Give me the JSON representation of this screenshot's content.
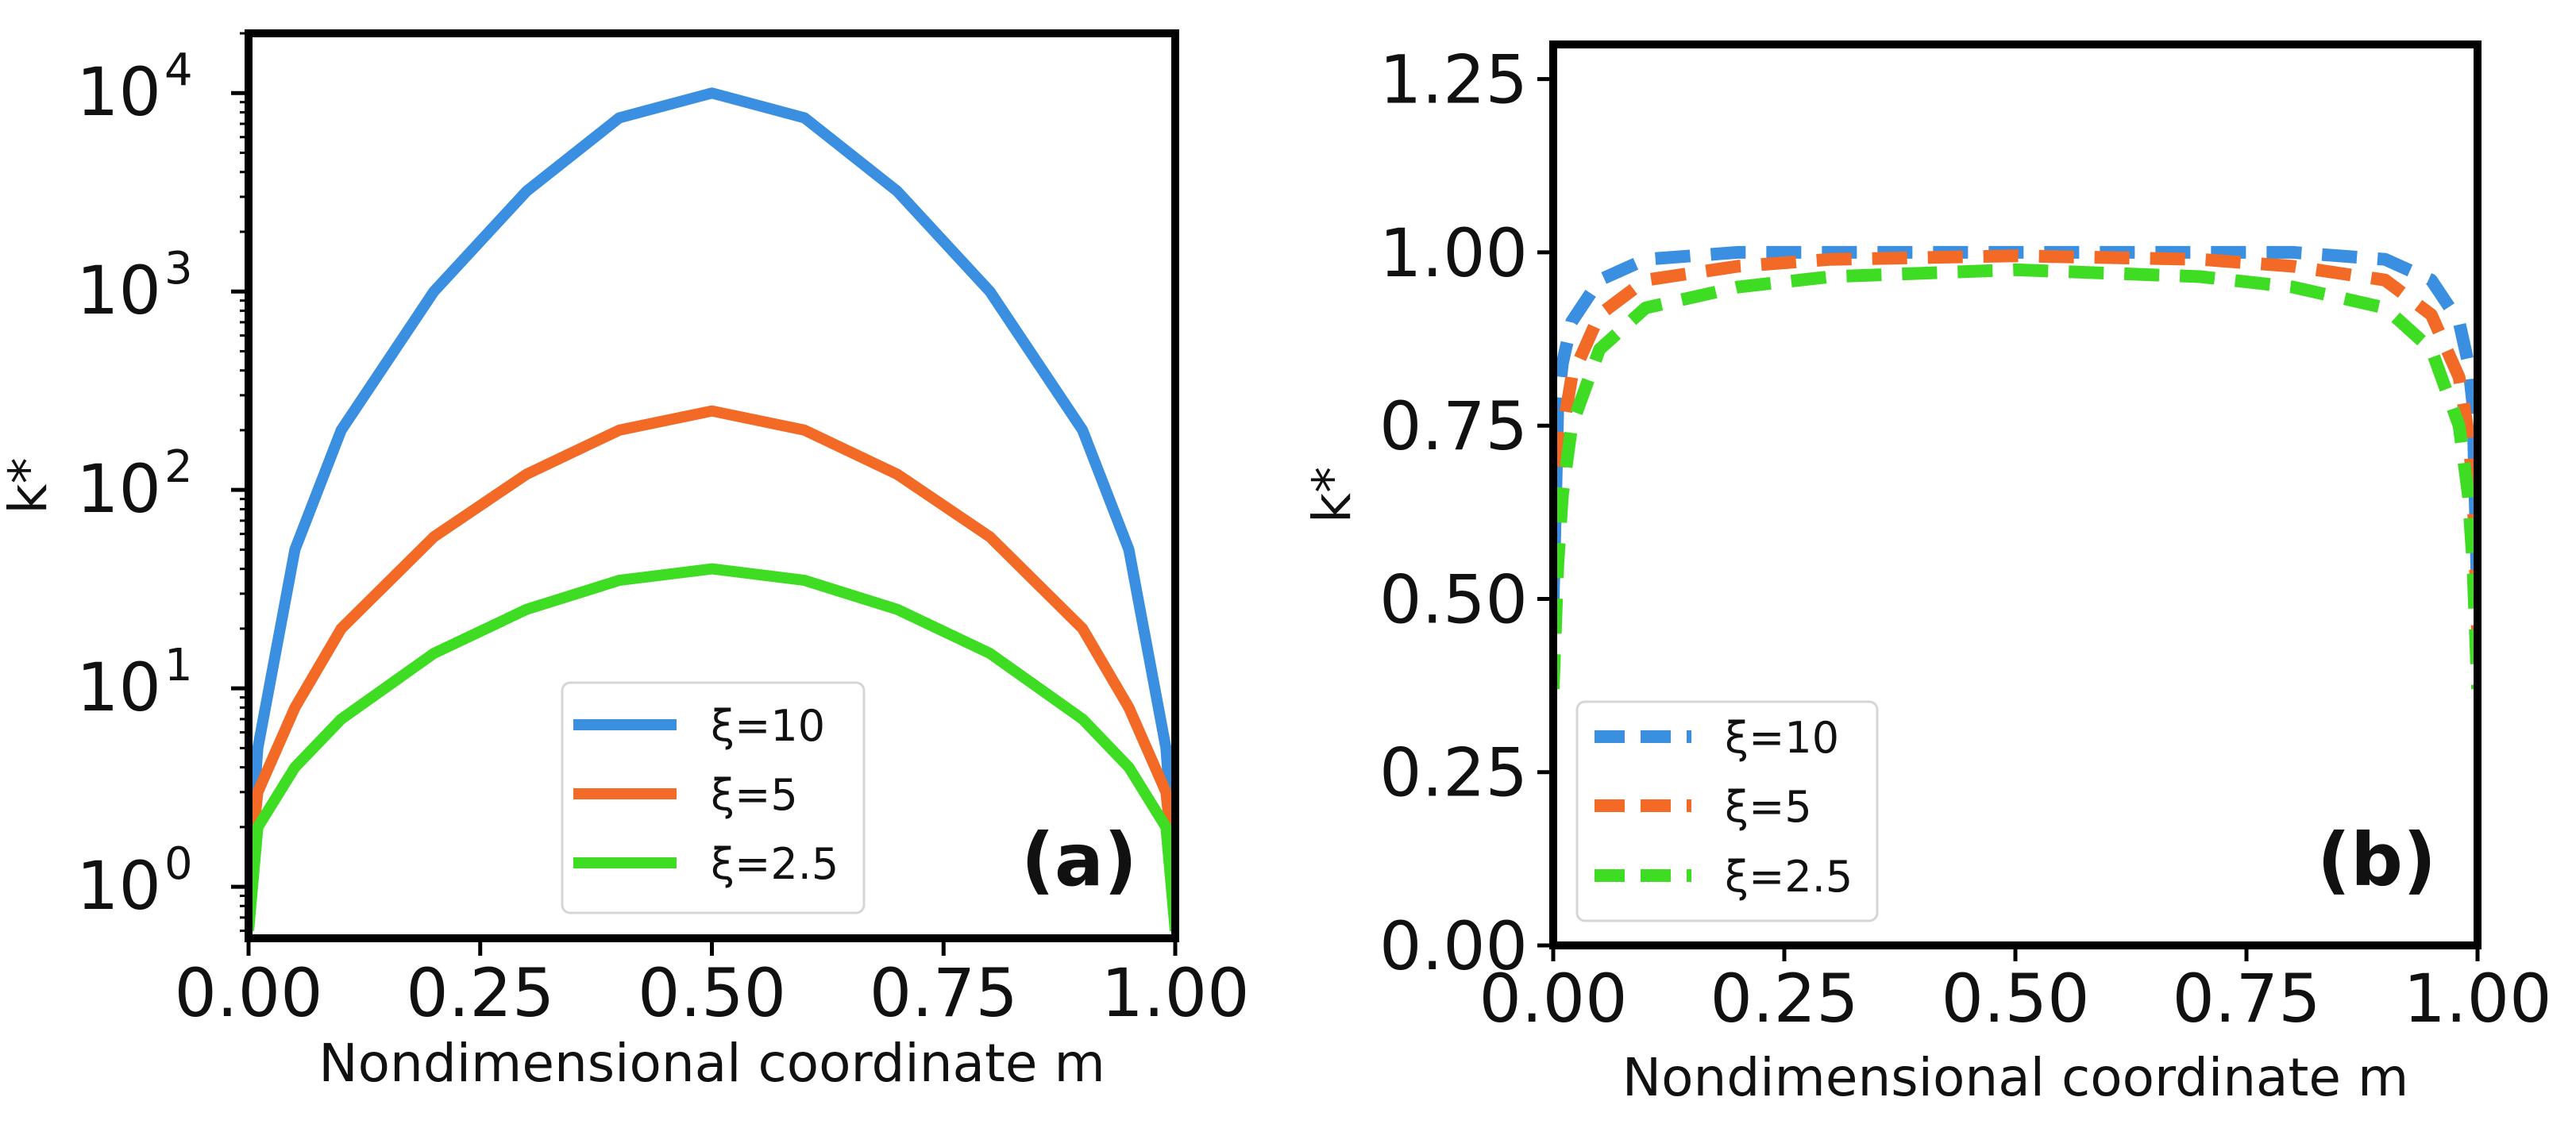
{
  "chart_data": [
    {
      "panel_label": "(a)",
      "type": "line",
      "yscale": "log",
      "xlabel": "Nondimensional coordinate m",
      "ylabel": "k*",
      "xlim": [
        0,
        1
      ],
      "ylim": [
        0.55,
        20000
      ],
      "xticks": [
        "0.00",
        "0.25",
        "0.50",
        "0.75",
        "1.00"
      ],
      "yticks": [
        {
          "base": "10",
          "exp": "0",
          "value": 1
        },
        {
          "base": "10",
          "exp": "1",
          "value": 10
        },
        {
          "base": "10",
          "exp": "2",
          "value": 100
        },
        {
          "base": "10",
          "exp": "3",
          "value": 1000
        },
        {
          "base": "10",
          "exp": "4",
          "value": 10000
        }
      ],
      "legend": "lower-center",
      "series": [
        {
          "name": "ξ=10",
          "color": "#3a8fe0",
          "linestyle": "solid",
          "x": [
            0.0,
            0.01,
            0.05,
            0.1,
            0.2,
            0.3,
            0.4,
            0.5,
            0.6,
            0.7,
            0.8,
            0.9,
            0.95,
            0.99,
            1.0
          ],
          "y": [
            1.2,
            5,
            50,
            200,
            1000,
            3200,
            7500,
            10000,
            7500,
            3200,
            1000,
            200,
            50,
            5,
            1.2
          ]
        },
        {
          "name": "ξ=5",
          "color": "#f26a25",
          "linestyle": "solid",
          "x": [
            0.0,
            0.01,
            0.05,
            0.1,
            0.2,
            0.3,
            0.4,
            0.5,
            0.6,
            0.7,
            0.8,
            0.9,
            0.95,
            0.99,
            1.0
          ],
          "y": [
            1.1,
            3,
            8,
            20,
            58,
            120,
            200,
            250,
            200,
            120,
            58,
            20,
            8,
            3,
            1.1
          ]
        },
        {
          "name": "ξ=2.5",
          "color": "#3fdc24",
          "linestyle": "solid",
          "x": [
            0.0,
            0.01,
            0.05,
            0.1,
            0.2,
            0.3,
            0.4,
            0.5,
            0.6,
            0.7,
            0.8,
            0.9,
            0.95,
            0.99,
            1.0
          ],
          "y": [
            0.6,
            2,
            4,
            7,
            15,
            25,
            35,
            40,
            35,
            25,
            15,
            7,
            4,
            2,
            0.6
          ]
        }
      ]
    },
    {
      "panel_label": "(b)",
      "type": "line",
      "yscale": "linear",
      "xlabel": "Nondimensional coordinate m",
      "ylabel": "k*",
      "xlim": [
        0,
        1
      ],
      "ylim": [
        0,
        1.3
      ],
      "xticks": [
        "0.00",
        "0.25",
        "0.50",
        "0.75",
        "1.00"
      ],
      "yticks": [
        "0.00",
        "0.25",
        "0.50",
        "0.75",
        "1.00",
        "1.25"
      ],
      "legend": "lower-left",
      "series": [
        {
          "name": "ξ=10",
          "color": "#3a8fe0",
          "linestyle": "dashed",
          "x": [
            0.0,
            0.005,
            0.01,
            0.02,
            0.05,
            0.1,
            0.2,
            0.3,
            0.5,
            0.7,
            0.8,
            0.9,
            0.95,
            0.98,
            0.99,
            0.995,
            1.0
          ],
          "y": [
            0.5,
            0.78,
            0.84,
            0.9,
            0.96,
            0.99,
            1.0,
            1.0,
            1.0,
            1.0,
            1.0,
            0.99,
            0.96,
            0.9,
            0.84,
            0.78,
            0.5
          ]
        },
        {
          "name": "ξ=5",
          "color": "#f26a25",
          "linestyle": "dashed",
          "x": [
            0.0,
            0.005,
            0.01,
            0.02,
            0.05,
            0.1,
            0.2,
            0.3,
            0.5,
            0.7,
            0.8,
            0.9,
            0.95,
            0.98,
            0.99,
            0.995,
            1.0
          ],
          "y": [
            0.45,
            0.66,
            0.74,
            0.82,
            0.91,
            0.96,
            0.98,
            0.99,
            0.995,
            0.99,
            0.98,
            0.96,
            0.91,
            0.82,
            0.74,
            0.66,
            0.45
          ]
        },
        {
          "name": "ξ=2.5",
          "color": "#3fdc24",
          "linestyle": "dashed",
          "x": [
            0.0,
            0.005,
            0.01,
            0.02,
            0.05,
            0.1,
            0.2,
            0.3,
            0.5,
            0.7,
            0.8,
            0.9,
            0.95,
            0.98,
            0.99,
            0.995,
            1.0
          ],
          "y": [
            0.37,
            0.55,
            0.65,
            0.75,
            0.86,
            0.92,
            0.95,
            0.965,
            0.975,
            0.965,
            0.95,
            0.92,
            0.86,
            0.75,
            0.65,
            0.55,
            0.37
          ]
        }
      ]
    }
  ]
}
